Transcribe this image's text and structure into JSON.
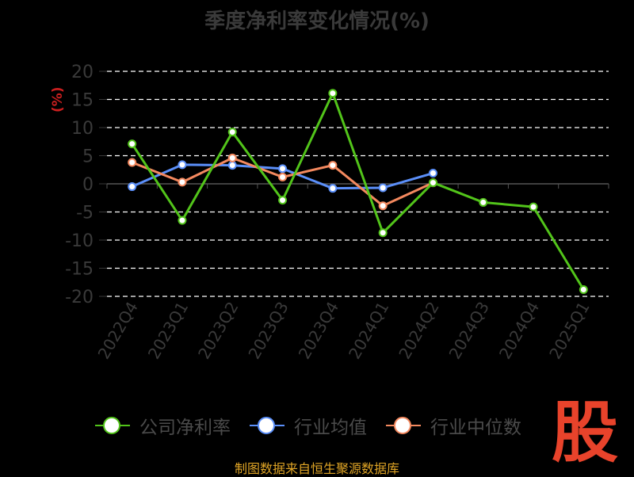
{
  "chart_data": {
    "type": "line",
    "title": "季度净利率变化情况(%)",
    "ylabel": "(%)",
    "xlabel": "",
    "categories": [
      "2022Q4",
      "2023Q1",
      "2023Q2",
      "2023Q3",
      "2023Q4",
      "2024Q1",
      "2024Q2",
      "2024Q3",
      "2024Q4",
      "2025Q1"
    ],
    "ylim": [
      -20,
      20
    ],
    "yticks": [
      20,
      15,
      10,
      5,
      0,
      -5,
      -10,
      -15,
      -20
    ],
    "grid": true,
    "legend_position": "bottom",
    "series": [
      {
        "name": "公司净利率",
        "color": "#52c41a",
        "values": [
          7.1,
          -6.5,
          9.2,
          -2.9,
          16.1,
          -8.7,
          0.2,
          -3.3,
          -4.1,
          -18.8
        ]
      },
      {
        "name": "行业均值",
        "color": "#5b8ff9",
        "values": [
          -0.5,
          3.4,
          3.3,
          2.7,
          -0.8,
          -0.7,
          1.9,
          null,
          null,
          null
        ]
      },
      {
        "name": "行业中位数",
        "color": "#f4895f",
        "values": [
          3.8,
          0.3,
          4.6,
          1.2,
          3.3,
          -3.9,
          0.2,
          null,
          null,
          null
        ]
      }
    ]
  },
  "watermark": "股",
  "source": "制图数据来自恒生聚源数据库"
}
